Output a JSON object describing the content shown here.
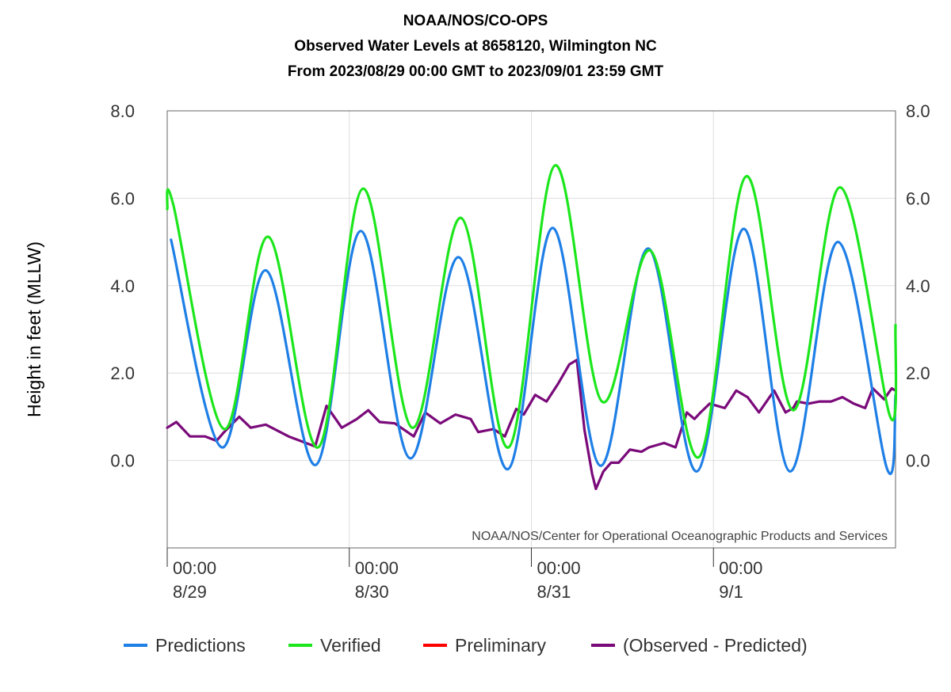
{
  "chart_data": {
    "type": "line",
    "title": [
      "NOAA/NOS/CO-OPS",
      "Observed Water Levels at 8658120, Wilmington NC",
      "From 2023/08/29 00:00 GMT to 2023/09/01 23:59 GMT"
    ],
    "ylabel": "Height in feet (MLLW)",
    "xlabel": "",
    "ylim": [
      -2.0,
      8.0
    ],
    "xlim_hours": [
      0,
      96
    ],
    "y_ticks": [
      "8.0",
      "6.0",
      "4.0",
      "2.0",
      "0.0"
    ],
    "x_ticks": [
      {
        "time": "00:00",
        "date": "8/29"
      },
      {
        "time": "00:00",
        "date": "8/30"
      },
      {
        "time": "00:00",
        "date": "8/31"
      },
      {
        "time": "00:00",
        "date": "9/1"
      }
    ],
    "credit": "NOAA/NOS/Center for Operational Oceanographic Products and Services",
    "grid": true,
    "legend_position": "bottom",
    "series": [
      {
        "name": "Predictions",
        "color": "#1e7fe6",
        "x_hours": [
          0.5,
          7.2,
          13.0,
          19.6,
          25.5,
          32.0,
          38.4,
          44.9,
          50.8,
          57.1,
          63.4,
          69.8,
          76.0,
          82.1,
          88.4,
          94.9,
          96.0
        ],
        "values": [
          5.05,
          0.3,
          4.35,
          -0.1,
          5.25,
          0.05,
          4.65,
          -0.2,
          5.32,
          -0.12,
          4.85,
          -0.25,
          5.3,
          -0.25,
          5.0,
          -0.2,
          1.5
        ]
      },
      {
        "name": "Verified",
        "color": "#1ce61c",
        "x_hours": [
          0.0,
          0.8,
          7.5,
          13.3,
          19.9,
          25.8,
          32.3,
          38.7,
          45.0,
          51.1,
          57.3,
          63.7,
          70.1,
          76.3,
          82.5,
          88.7,
          95.3,
          96.0
        ],
        "values": [
          5.75,
          5.85,
          0.72,
          5.12,
          0.3,
          6.22,
          0.75,
          5.55,
          0.3,
          6.75,
          1.35,
          4.8,
          0.08,
          6.5,
          1.15,
          6.25,
          1.0,
          3.1
        ]
      },
      {
        "name": "Preliminary",
        "color": "#ff0000",
        "x_hours": [],
        "values": []
      },
      {
        "name": "(Observed - Predicted)",
        "color": "#7a0a7a",
        "x_hours": [
          0.0,
          1.2,
          3.0,
          5.0,
          6.5,
          7.5,
          9.5,
          11.0,
          13.0,
          16.0,
          19.5,
          21.0,
          23.0,
          25.0,
          26.5,
          28.0,
          30.0,
          32.5,
          34.0,
          36.0,
          38.0,
          40.0,
          41.0,
          43.0,
          44.5,
          46.0,
          47.0,
          48.5,
          50.0,
          51.5,
          53.0,
          54.0,
          55.0,
          56.0,
          56.5,
          57.5,
          58.5,
          59.5,
          61.0,
          62.5,
          63.5,
          65.5,
          67.0,
          68.5,
          69.5,
          70.3,
          71.5,
          73.5,
          75.0,
          76.5,
          78.0,
          80.0,
          81.5,
          82.5,
          83.0,
          84.5,
          86.0,
          87.5,
          89.0,
          90.5,
          92.0,
          93.0,
          94.5,
          95.5,
          96.0
        ],
        "values": [
          0.75,
          0.88,
          0.55,
          0.55,
          0.45,
          0.65,
          1.0,
          0.75,
          0.82,
          0.55,
          0.32,
          1.25,
          0.75,
          0.95,
          1.15,
          0.88,
          0.85,
          0.55,
          1.1,
          0.85,
          1.05,
          0.95,
          0.65,
          0.72,
          0.55,
          1.18,
          1.05,
          1.5,
          1.35,
          1.75,
          2.2,
          2.3,
          0.7,
          -0.3,
          -0.65,
          -0.25,
          -0.05,
          -0.05,
          0.25,
          0.2,
          0.3,
          0.4,
          0.3,
          1.1,
          0.95,
          1.1,
          1.3,
          1.2,
          1.6,
          1.45,
          1.1,
          1.6,
          1.1,
          1.2,
          1.35,
          1.3,
          1.35,
          1.35,
          1.45,
          1.3,
          1.2,
          1.65,
          1.4,
          1.65,
          1.6
        ]
      }
    ]
  }
}
